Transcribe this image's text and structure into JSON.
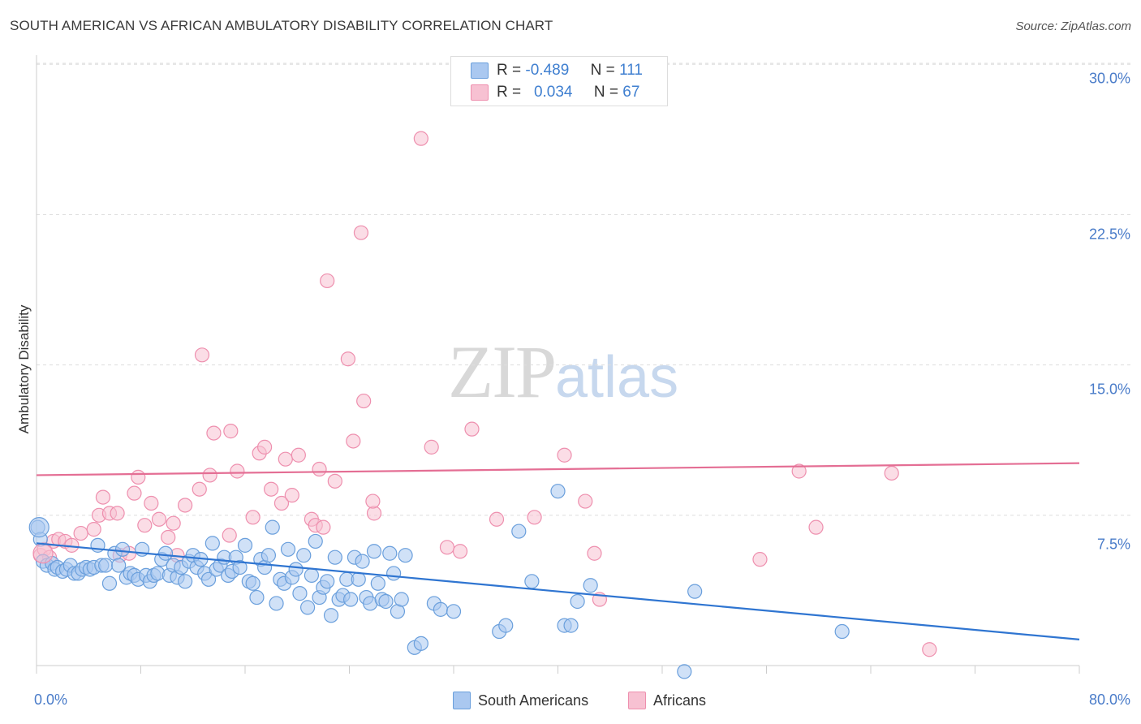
{
  "title": "SOUTH AMERICAN VS AFRICAN AMBULATORY DISABILITY CORRELATION CHART",
  "source": "Source: ZipAtlas.com",
  "watermark": {
    "zip": "ZIP",
    "atlas": "atlas"
  },
  "stats": {
    "row1": {
      "r_label": "R =",
      "r_value": "-0.489",
      "n_label": "N =",
      "n_value": "111"
    },
    "row2": {
      "r_label": "R =",
      "r_value": "0.034",
      "n_label": "N =",
      "n_value": "67"
    }
  },
  "legend": {
    "south_americans": "South Americans",
    "africans": "Africans"
  },
  "colors": {
    "blue_fill": "#aac8f0",
    "blue_stroke": "#6a9fdc",
    "blue_line": "#2f75d1",
    "pink_fill": "#f7c1d2",
    "pink_stroke": "#ee8fae",
    "pink_line": "#e46e94",
    "tick_text": "#4a7cc9",
    "grid": "#dddddd"
  },
  "chart_data": {
    "type": "scatter",
    "title": "SOUTH AMERICAN VS AFRICAN AMBULATORY DISABILITY CORRELATION CHART",
    "xlabel": "",
    "ylabel": "Ambulatory Disability",
    "xlim": [
      0,
      80
    ],
    "ylim": [
      0,
      30.7
    ],
    "x_tick_labels": [
      "0.0%",
      "80.0%"
    ],
    "y_ticks": [
      7.5,
      15.0,
      22.5,
      30.0
    ],
    "y_tick_labels": [
      "7.5%",
      "15.0%",
      "22.5%",
      "30.0%"
    ],
    "grid": "horizontal dashed",
    "legend_position": "bottom-center",
    "series": [
      {
        "name": "South Americans",
        "r": -0.489,
        "n": 111,
        "trend": {
          "x": [
            0,
            80
          ],
          "y": [
            6.1,
            1.3
          ]
        },
        "points": [
          [
            0.1,
            6.9
          ],
          [
            0.3,
            6.3
          ],
          [
            0.5,
            5.2
          ],
          [
            0.8,
            5.0
          ],
          [
            1.2,
            5.1
          ],
          [
            1.4,
            4.8
          ],
          [
            1.6,
            4.9
          ],
          [
            2.0,
            4.7
          ],
          [
            2.3,
            4.8
          ],
          [
            2.6,
            5.0
          ],
          [
            2.9,
            4.6
          ],
          [
            3.2,
            4.6
          ],
          [
            3.5,
            4.8
          ],
          [
            3.8,
            4.9
          ],
          [
            4.1,
            4.8
          ],
          [
            4.4,
            4.9
          ],
          [
            4.7,
            6.0
          ],
          [
            5.0,
            5.0
          ],
          [
            5.3,
            5.0
          ],
          [
            5.6,
            4.1
          ],
          [
            6.0,
            5.6
          ],
          [
            6.3,
            5.0
          ],
          [
            6.6,
            5.8
          ],
          [
            6.9,
            4.4
          ],
          [
            7.2,
            4.6
          ],
          [
            7.5,
            4.5
          ],
          [
            7.8,
            4.3
          ],
          [
            8.1,
            5.8
          ],
          [
            8.4,
            4.5
          ],
          [
            8.7,
            4.2
          ],
          [
            9.0,
            4.5
          ],
          [
            9.3,
            4.6
          ],
          [
            9.6,
            5.3
          ],
          [
            9.9,
            5.6
          ],
          [
            10.2,
            4.5
          ],
          [
            10.5,
            5.0
          ],
          [
            10.8,
            4.4
          ],
          [
            11.1,
            4.9
          ],
          [
            11.4,
            4.2
          ],
          [
            11.7,
            5.2
          ],
          [
            12.0,
            5.5
          ],
          [
            12.3,
            4.9
          ],
          [
            12.6,
            5.3
          ],
          [
            12.9,
            4.6
          ],
          [
            13.2,
            4.3
          ],
          [
            13.5,
            6.1
          ],
          [
            13.8,
            4.8
          ],
          [
            14.1,
            5.0
          ],
          [
            14.4,
            5.4
          ],
          [
            14.7,
            4.5
          ],
          [
            15.0,
            4.7
          ],
          [
            15.3,
            5.4
          ],
          [
            15.6,
            4.9
          ],
          [
            16.0,
            6.0
          ],
          [
            16.3,
            4.2
          ],
          [
            16.6,
            4.1
          ],
          [
            16.9,
            3.4
          ],
          [
            17.2,
            5.3
          ],
          [
            17.5,
            4.9
          ],
          [
            17.8,
            5.5
          ],
          [
            18.1,
            6.9
          ],
          [
            18.4,
            3.1
          ],
          [
            18.7,
            4.3
          ],
          [
            19.0,
            4.1
          ],
          [
            19.3,
            5.8
          ],
          [
            19.6,
            4.4
          ],
          [
            19.9,
            4.8
          ],
          [
            20.2,
            3.6
          ],
          [
            20.5,
            5.5
          ],
          [
            20.8,
            2.9
          ],
          [
            21.1,
            4.5
          ],
          [
            21.4,
            6.2
          ],
          [
            21.7,
            3.4
          ],
          [
            22.0,
            3.9
          ],
          [
            22.3,
            4.2
          ],
          [
            22.6,
            2.5
          ],
          [
            22.9,
            5.4
          ],
          [
            23.2,
            3.3
          ],
          [
            23.5,
            3.5
          ],
          [
            23.8,
            4.3
          ],
          [
            24.1,
            3.3
          ],
          [
            24.4,
            5.4
          ],
          [
            24.7,
            4.3
          ],
          [
            25.0,
            5.2
          ],
          [
            25.3,
            3.4
          ],
          [
            25.6,
            3.1
          ],
          [
            25.9,
            5.7
          ],
          [
            26.2,
            4.1
          ],
          [
            26.5,
            3.3
          ],
          [
            26.8,
            3.2
          ],
          [
            27.1,
            5.6
          ],
          [
            27.4,
            4.6
          ],
          [
            27.7,
            2.7
          ],
          [
            28.0,
            3.3
          ],
          [
            28.3,
            5.5
          ],
          [
            29.0,
            0.9
          ],
          [
            29.5,
            1.1
          ],
          [
            30.5,
            3.1
          ],
          [
            31.0,
            2.8
          ],
          [
            32.0,
            2.7
          ],
          [
            35.5,
            1.7
          ],
          [
            36.0,
            2.0
          ],
          [
            37.0,
            6.7
          ],
          [
            38.0,
            4.2
          ],
          [
            40.0,
            8.7
          ],
          [
            40.5,
            2.0
          ],
          [
            41.0,
            2.0
          ],
          [
            41.5,
            3.2
          ],
          [
            42.5,
            4.0
          ],
          [
            49.7,
            -0.3
          ],
          [
            50.5,
            3.7
          ],
          [
            61.8,
            1.7
          ]
        ]
      },
      {
        "name": "Africans",
        "r": 0.034,
        "n": 67,
        "trend": {
          "x": [
            0,
            80
          ],
          "y": [
            9.5,
            10.1
          ]
        },
        "points": [
          [
            0.3,
            5.5
          ],
          [
            0.6,
            5.8
          ],
          [
            1.0,
            5.4
          ],
          [
            1.3,
            6.2
          ],
          [
            1.7,
            6.3
          ],
          [
            2.2,
            6.2
          ],
          [
            2.7,
            6.0
          ],
          [
            3.4,
            6.6
          ],
          [
            4.4,
            6.8
          ],
          [
            4.8,
            7.5
          ],
          [
            5.1,
            8.4
          ],
          [
            5.6,
            7.6
          ],
          [
            6.2,
            7.6
          ],
          [
            6.4,
            5.5
          ],
          [
            7.1,
            5.6
          ],
          [
            7.5,
            8.6
          ],
          [
            7.8,
            9.4
          ],
          [
            8.3,
            7.0
          ],
          [
            8.8,
            8.1
          ],
          [
            9.4,
            7.3
          ],
          [
            10.1,
            6.4
          ],
          [
            10.5,
            7.1
          ],
          [
            10.8,
            5.5
          ],
          [
            11.4,
            8.0
          ],
          [
            12.5,
            8.8
          ],
          [
            12.7,
            15.5
          ],
          [
            13.3,
            9.5
          ],
          [
            13.6,
            11.6
          ],
          [
            14.8,
            6.5
          ],
          [
            14.9,
            11.7
          ],
          [
            15.4,
            9.7
          ],
          [
            16.6,
            7.4
          ],
          [
            17.1,
            10.6
          ],
          [
            17.5,
            10.9
          ],
          [
            18.0,
            8.8
          ],
          [
            18.8,
            8.1
          ],
          [
            19.1,
            10.3
          ],
          [
            19.6,
            8.5
          ],
          [
            20.1,
            10.5
          ],
          [
            21.1,
            7.3
          ],
          [
            21.4,
            7.0
          ],
          [
            21.7,
            9.8
          ],
          [
            22.0,
            6.9
          ],
          [
            22.3,
            19.2
          ],
          [
            22.9,
            9.2
          ],
          [
            23.9,
            15.3
          ],
          [
            24.3,
            11.2
          ],
          [
            24.9,
            21.6
          ],
          [
            25.1,
            13.2
          ],
          [
            25.9,
            7.6
          ],
          [
            25.8,
            8.2
          ],
          [
            29.5,
            26.3
          ],
          [
            30.3,
            10.9
          ],
          [
            31.5,
            5.9
          ],
          [
            32.5,
            5.7
          ],
          [
            33.4,
            11.8
          ],
          [
            35.3,
            7.3
          ],
          [
            38.2,
            7.4
          ],
          [
            40.5,
            10.5
          ],
          [
            42.1,
            8.2
          ],
          [
            42.8,
            5.6
          ],
          [
            43.2,
            3.3
          ],
          [
            55.5,
            5.3
          ],
          [
            58.5,
            9.7
          ],
          [
            59.8,
            6.9
          ],
          [
            65.6,
            9.6
          ],
          [
            68.5,
            0.8
          ]
        ]
      }
    ]
  }
}
